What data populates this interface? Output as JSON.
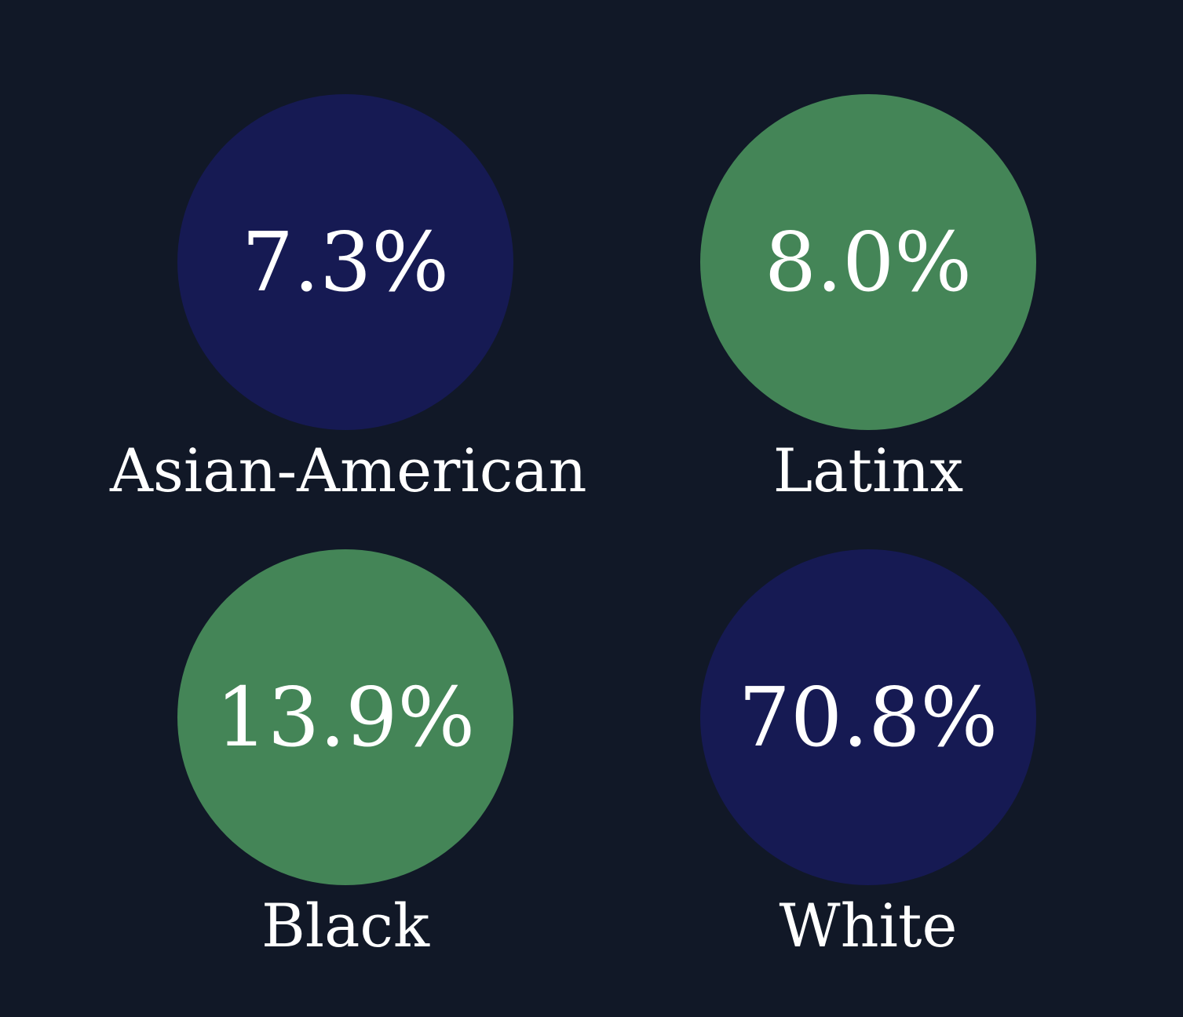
{
  "chart_data": {
    "type": "bubble",
    "categories": [
      "Asian-American",
      "Latinx",
      "Black",
      "White"
    ],
    "values": [
      7.3,
      8.0,
      13.9,
      70.8
    ],
    "value_labels": [
      "7.3%",
      "8.0%",
      "13.9%",
      "70.8%"
    ],
    "unit": "%",
    "colors": [
      "#161a53",
      "#448557",
      "#448557",
      "#161a53"
    ]
  },
  "colors": {
    "background": "#111827",
    "navy": "#161a53",
    "green": "#448557",
    "text": "#ffffff"
  }
}
